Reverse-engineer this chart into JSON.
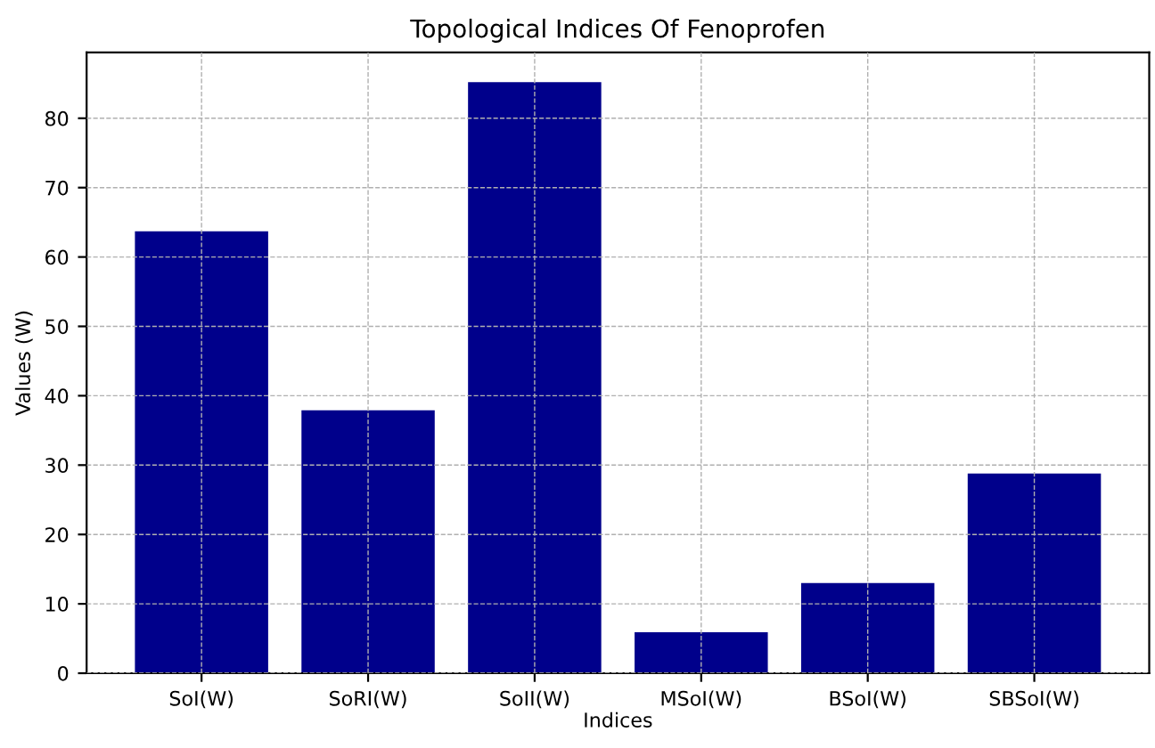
{
  "chart_data": {
    "type": "bar",
    "title": "Topological Indices Of Fenoprofen",
    "xlabel": "Indices",
    "ylabel": "Values (W)",
    "categories": [
      "SoI(W)",
      "SoRI(W)",
      "SoII(W)",
      "MSoI(W)",
      "BSoI(W)",
      "SBSoI(W)"
    ],
    "values": [
      63.7,
      37.9,
      85.2,
      5.9,
      13.0,
      28.8
    ],
    "color": "#00008b",
    "ylim": [
      0,
      89.5
    ],
    "yticks": [
      0,
      10,
      20,
      30,
      40,
      50,
      60,
      70,
      80
    ],
    "grid": true
  }
}
